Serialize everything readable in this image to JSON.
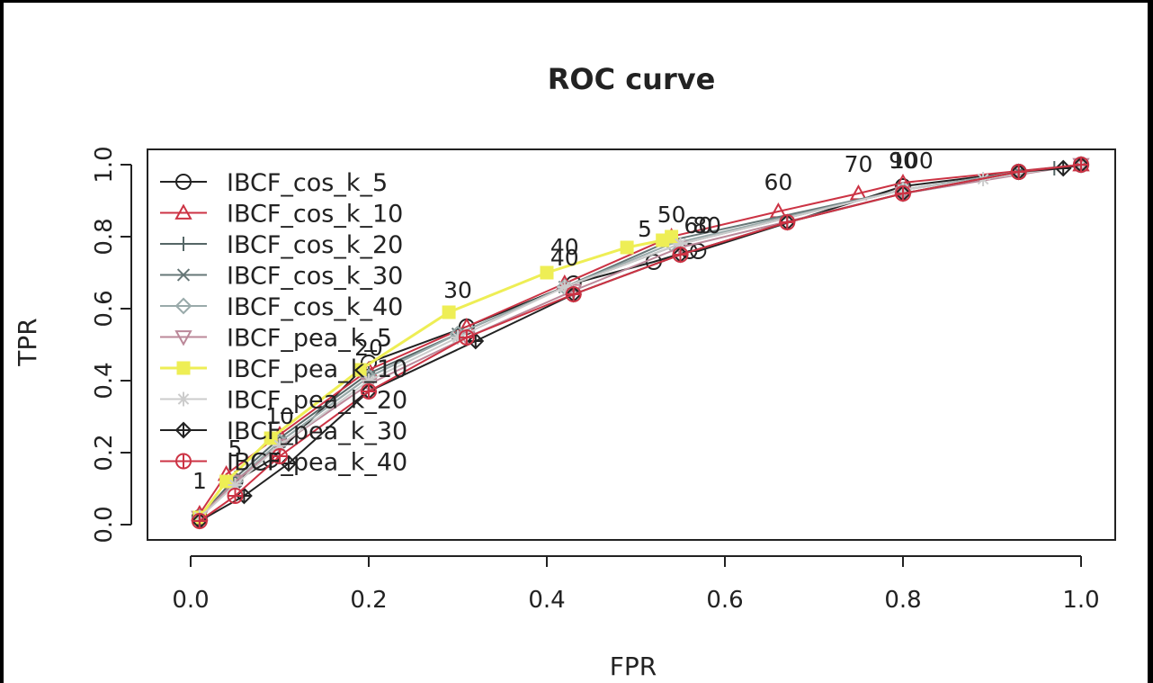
{
  "chart_data": {
    "type": "line",
    "title": "ROC curve",
    "xlabel": "FPR",
    "ylabel": "TPR",
    "xlim": [
      0,
      1
    ],
    "ylim": [
      0,
      1
    ],
    "xticks": [
      0.0,
      0.2,
      0.4,
      0.6,
      0.8,
      1.0
    ],
    "yticks": [
      0.0,
      0.2,
      0.4,
      0.6,
      0.8,
      1.0
    ],
    "xtick_labels": [
      "0.0",
      "0.2",
      "0.4",
      "0.6",
      "0.8",
      "1.0"
    ],
    "ytick_labels": [
      "0.0",
      "0.2",
      "0.4",
      "0.6",
      "0.8",
      "1.0"
    ],
    "grid": false,
    "legend_position": "top-left",
    "series": [
      {
        "name": "IBCF_cos_k_5",
        "color": "#222222",
        "marker": "circle",
        "x": [
          0.01,
          0.05,
          0.09,
          0.2,
          0.31,
          0.43,
          0.52,
          0.56,
          0.57,
          0.8,
          0.93,
          1.0
        ],
        "y": [
          0.02,
          0.12,
          0.18,
          0.45,
          0.55,
          0.67,
          0.73,
          0.76,
          0.76,
          0.94,
          0.98,
          1.0
        ]
      },
      {
        "name": "IBCF_cos_k_10",
        "color": "#cc3344",
        "marker": "triangle-up",
        "x": [
          0.01,
          0.04,
          0.1,
          0.2,
          0.31,
          0.42,
          0.54,
          0.66,
          0.75,
          0.8,
          1.0
        ],
        "y": [
          0.03,
          0.14,
          0.25,
          0.43,
          0.55,
          0.67,
          0.8,
          0.87,
          0.92,
          0.95,
          1.0
        ]
      },
      {
        "name": "IBCF_cos_k_20",
        "color": "#556666",
        "marker": "plus",
        "x": [
          0.01,
          0.05,
          0.1,
          0.2,
          0.3,
          0.42,
          0.55,
          0.8,
          0.97,
          1.0
        ],
        "y": [
          0.02,
          0.13,
          0.24,
          0.42,
          0.53,
          0.66,
          0.78,
          0.93,
          0.99,
          1.0
        ]
      },
      {
        "name": "IBCF_cos_k_30",
        "color": "#667777",
        "marker": "x",
        "x": [
          0.01,
          0.05,
          0.1,
          0.2,
          0.3,
          0.42,
          0.54,
          0.8,
          0.93,
          1.0
        ],
        "y": [
          0.02,
          0.12,
          0.23,
          0.41,
          0.53,
          0.66,
          0.79,
          0.93,
          0.98,
          1.0
        ]
      },
      {
        "name": "IBCF_cos_k_40",
        "color": "#99aaaa",
        "marker": "diamond",
        "x": [
          0.01,
          0.05,
          0.1,
          0.2,
          0.3,
          0.42,
          0.54,
          0.8,
          0.93,
          1.0
        ],
        "y": [
          0.02,
          0.12,
          0.23,
          0.41,
          0.53,
          0.66,
          0.78,
          0.93,
          0.98,
          1.0
        ]
      },
      {
        "name": "IBCF_pea_k_5",
        "color": "#bb8899",
        "marker": "triangle-down",
        "x": [
          0.01,
          0.05,
          0.1,
          0.2,
          0.31,
          0.43,
          0.55,
          0.8,
          1.0
        ],
        "y": [
          0.02,
          0.12,
          0.22,
          0.39,
          0.52,
          0.65,
          0.77,
          0.92,
          1.0
        ]
      },
      {
        "name": "IBCF_pea_k_10",
        "color": "#eeee55",
        "marker": "square",
        "x": [
          0.01,
          0.04,
          0.09,
          0.19,
          0.29,
          0.4,
          0.49,
          0.53,
          0.54
        ],
        "y": [
          0.02,
          0.12,
          0.24,
          0.43,
          0.59,
          0.7,
          0.77,
          0.79,
          0.8
        ]
      },
      {
        "name": "IBCF_pea_k_20",
        "color": "#cccccc",
        "marker": "asterisk",
        "x": [
          0.01,
          0.05,
          0.1,
          0.2,
          0.3,
          0.42,
          0.55,
          0.8,
          0.89,
          1.0
        ],
        "y": [
          0.02,
          0.11,
          0.22,
          0.4,
          0.52,
          0.66,
          0.78,
          0.93,
          0.96,
          1.0
        ]
      },
      {
        "name": "IBCF_pea_k_30",
        "color": "#222222",
        "marker": "diamond-plus",
        "x": [
          0.01,
          0.06,
          0.11,
          0.2,
          0.32,
          0.43,
          0.55,
          0.67,
          0.8,
          0.93,
          0.98,
          1.0
        ],
        "y": [
          0.01,
          0.08,
          0.17,
          0.37,
          0.51,
          0.64,
          0.75,
          0.84,
          0.92,
          0.98,
          0.99,
          1.0
        ]
      },
      {
        "name": "IBCF_pea_k_40",
        "color": "#cc3344",
        "marker": "circle-plus",
        "x": [
          0.01,
          0.05,
          0.1,
          0.2,
          0.31,
          0.43,
          0.55,
          0.67,
          0.8,
          0.93,
          1.0
        ],
        "y": [
          0.01,
          0.08,
          0.19,
          0.37,
          0.52,
          0.64,
          0.75,
          0.84,
          0.92,
          0.98,
          1.0
        ]
      }
    ],
    "annotations": [
      {
        "text": "1",
        "x": 0.01,
        "y": 0.1
      },
      {
        "text": "5",
        "x": 0.05,
        "y": 0.19
      },
      {
        "text": "10",
        "x": 0.1,
        "y": 0.28
      },
      {
        "text": "20",
        "x": 0.2,
        "y": 0.47
      },
      {
        "text": "30",
        "x": 0.3,
        "y": 0.63
      },
      {
        "text": "40",
        "x": 0.42,
        "y": 0.75
      },
      {
        "text": "40",
        "x": 0.42,
        "y": 0.72
      },
      {
        "text": "50",
        "x": 0.54,
        "y": 0.84
      },
      {
        "text": "5",
        "x": 0.51,
        "y": 0.8
      },
      {
        "text": "60",
        "x": 0.57,
        "y": 0.81
      },
      {
        "text": "80",
        "x": 0.58,
        "y": 0.81
      },
      {
        "text": "60",
        "x": 0.66,
        "y": 0.93
      },
      {
        "text": "70",
        "x": 0.75,
        "y": 0.98
      },
      {
        "text": "90",
        "x": 0.8,
        "y": 0.99
      },
      {
        "text": "100",
        "x": 0.81,
        "y": 0.99
      }
    ]
  }
}
